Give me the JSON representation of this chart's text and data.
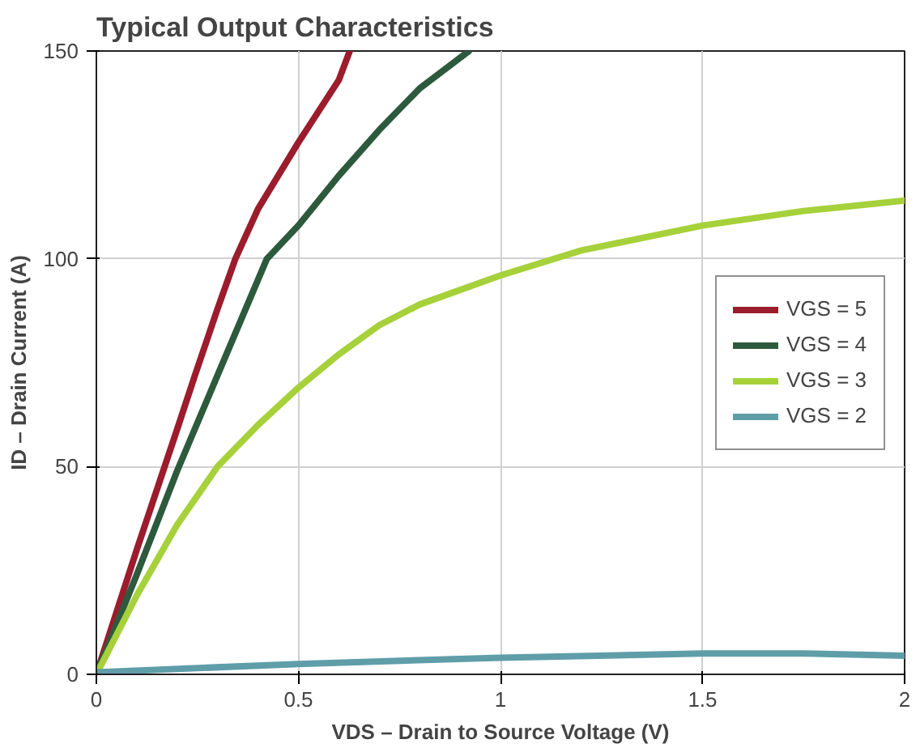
{
  "chart_data": {
    "type": "line",
    "title": "Typical Output Characteristics",
    "xlabel": "VDS – Drain to Source Voltage (V)",
    "ylabel": "ID – Drain Current (A)",
    "xlim": [
      0,
      2
    ],
    "ylim": [
      0,
      150
    ],
    "xticks": [
      0,
      0.5,
      1,
      1.5,
      2
    ],
    "yticks": [
      0,
      50,
      100,
      150
    ],
    "grid": true,
    "legend": "right",
    "marker": "none",
    "line_style": "solid",
    "series": [
      {
        "name": "VGS = 5",
        "color": "#9b1c2c",
        "x": [
          0,
          0.1,
          0.2,
          0.244,
          0.3,
          0.344,
          0.4,
          0.5,
          0.6,
          0.627
        ],
        "values": [
          0,
          30,
          59,
          72,
          88,
          100,
          112,
          128,
          143,
          150
        ]
      },
      {
        "name": "VGS = 4",
        "color": "#2d5a3d",
        "x": [
          0,
          0.1,
          0.2,
          0.3,
          0.422,
          0.5,
          0.6,
          0.7,
          0.8,
          0.922
        ],
        "values": [
          0,
          24,
          49,
          72,
          100,
          108,
          120,
          131,
          141,
          150
        ]
      },
      {
        "name": "VGS = 3",
        "color": "#a6d13a",
        "x": [
          0,
          0.1,
          0.2,
          0.3,
          0.4,
          0.5,
          0.6,
          0.7,
          0.8,
          1.0,
          1.2,
          1.5,
          1.75,
          2.0
        ],
        "values": [
          0,
          19,
          36,
          50,
          60,
          69,
          77,
          84,
          89,
          96,
          102,
          108,
          111.5,
          114
        ]
      },
      {
        "name": "VGS = 2",
        "color": "#5f9ea8",
        "x": [
          0,
          0.5,
          1,
          1.5,
          1.75,
          2
        ],
        "values": [
          0.5,
          2.5,
          4,
          5,
          5,
          4.5
        ]
      }
    ]
  }
}
